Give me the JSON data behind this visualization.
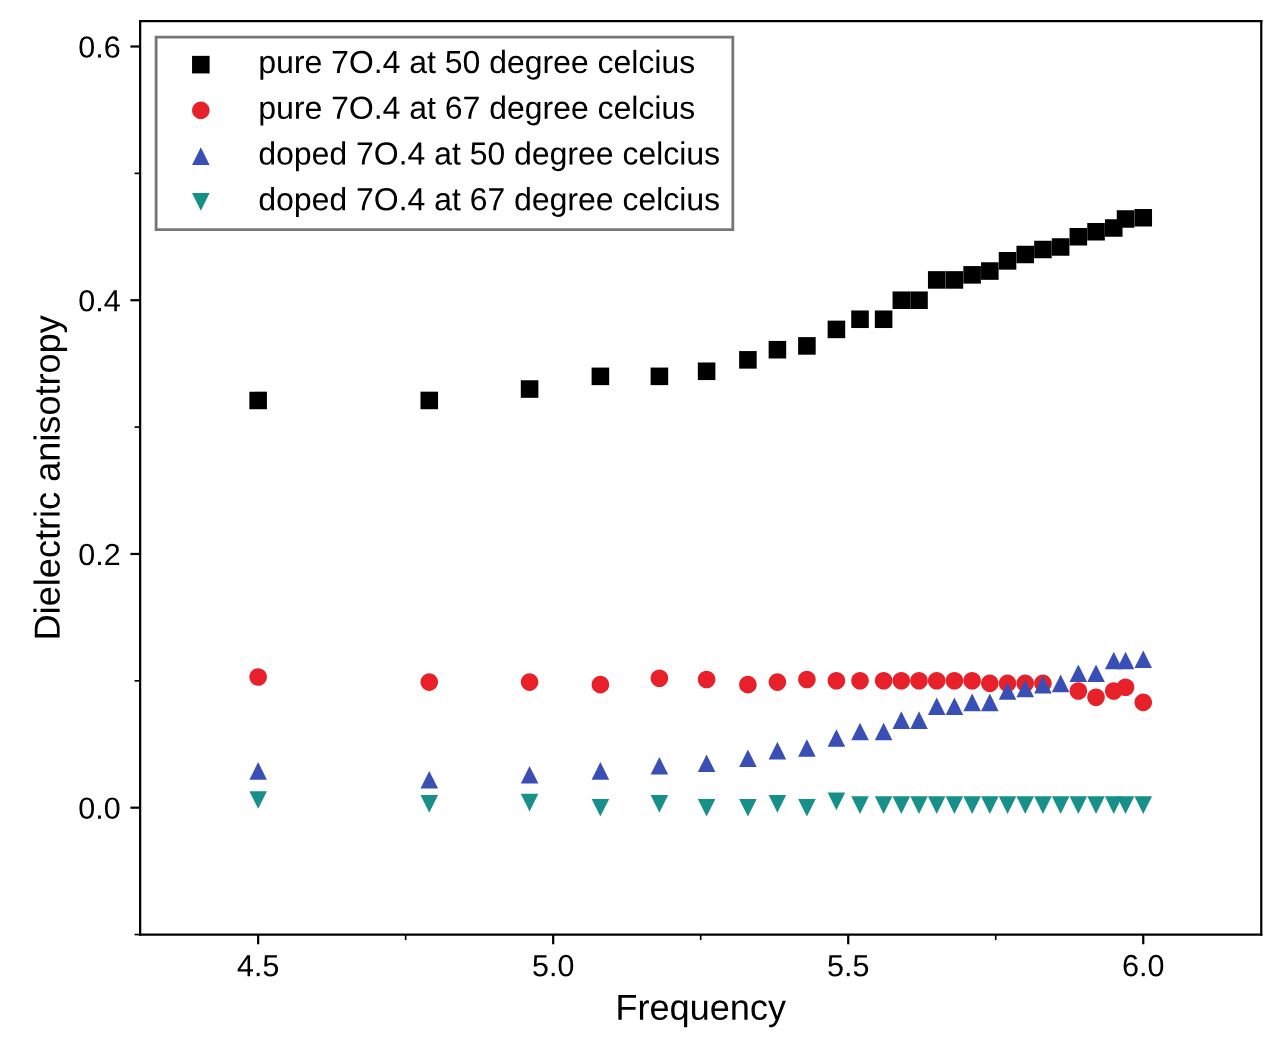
{
  "chart_data": {
    "type": "scatter",
    "xlabel": "Frequency",
    "ylabel": "Dielectric anisotropy",
    "x": [
      4.5,
      4.79,
      4.96,
      5.08,
      5.18,
      5.26,
      5.33,
      5.38,
      5.43,
      5.48,
      5.52,
      5.56,
      5.59,
      5.62,
      5.65,
      5.68,
      5.71,
      5.74,
      5.77,
      5.8,
      5.83,
      5.86,
      5.89,
      5.92,
      5.95,
      5.97,
      6.0
    ],
    "series": [
      {
        "name": "pure 7O.4 at 50 degree celcius",
        "color": "#000000",
        "marker": "square",
        "values": [
          0.321,
          0.321,
          0.33,
          0.34,
          0.34,
          0.344,
          0.353,
          0.361,
          0.364,
          0.377,
          0.385,
          0.385,
          0.4,
          0.4,
          0.416,
          0.416,
          0.42,
          0.423,
          0.431,
          0.436,
          0.44,
          0.442,
          0.45,
          0.454,
          0.457,
          0.464,
          0.465
        ]
      },
      {
        "name": "pure 7O.4 at 67 degree celcius",
        "color": "#e8202a",
        "marker": "circle",
        "values": [
          0.103,
          0.099,
          0.099,
          0.097,
          0.102,
          0.101,
          0.097,
          0.099,
          0.101,
          0.1,
          0.1,
          0.1,
          0.1,
          0.1,
          0.1,
          0.1,
          0.1,
          0.098,
          0.098,
          0.098,
          0.098,
          null,
          0.092,
          0.087,
          0.092,
          0.095,
          0.083
        ]
      },
      {
        "name": "doped 7O.4 at 50 degree celcius",
        "color": "#3a4fb5",
        "marker": "triangle",
        "values": [
          0.029,
          0.022,
          0.026,
          0.029,
          0.033,
          0.035,
          0.039,
          0.045,
          0.047,
          0.055,
          0.06,
          0.06,
          0.069,
          0.069,
          0.08,
          0.08,
          0.083,
          0.083,
          0.092,
          0.094,
          0.097,
          0.098,
          0.106,
          0.106,
          0.116,
          0.116,
          0.117
        ]
      },
      {
        "name": "doped 7O.4 at 67 degree celcius",
        "color": "#18908a",
        "marker": "triangle_down",
        "values": [
          0.006,
          0.003,
          0.004,
          0.0,
          0.003,
          0.0,
          0.0,
          0.003,
          0.0,
          0.005,
          0.002,
          0.002,
          0.002,
          0.002,
          0.002,
          0.002,
          0.002,
          0.002,
          0.002,
          0.002,
          0.002,
          0.002,
          0.002,
          0.002,
          0.002,
          0.002,
          0.002
        ]
      }
    ],
    "xlim": [
      4.3,
      6.2
    ],
    "xticks": [
      {
        "value": 4.5,
        "label": "4.5"
      },
      {
        "value": 5.0,
        "label": "5.0"
      },
      {
        "value": 5.5,
        "label": "5.5"
      },
      {
        "value": 6.0,
        "label": "6.0"
      }
    ],
    "ylim": [
      -0.1,
      0.62
    ],
    "yticks": [
      {
        "value": 0.0,
        "label": "0.0"
      },
      {
        "value": 0.2,
        "label": "0.2"
      },
      {
        "value": 0.4,
        "label": "0.4"
      },
      {
        "value": 0.6,
        "label": "0.6"
      }
    ],
    "grid": false,
    "legend": "top left"
  }
}
